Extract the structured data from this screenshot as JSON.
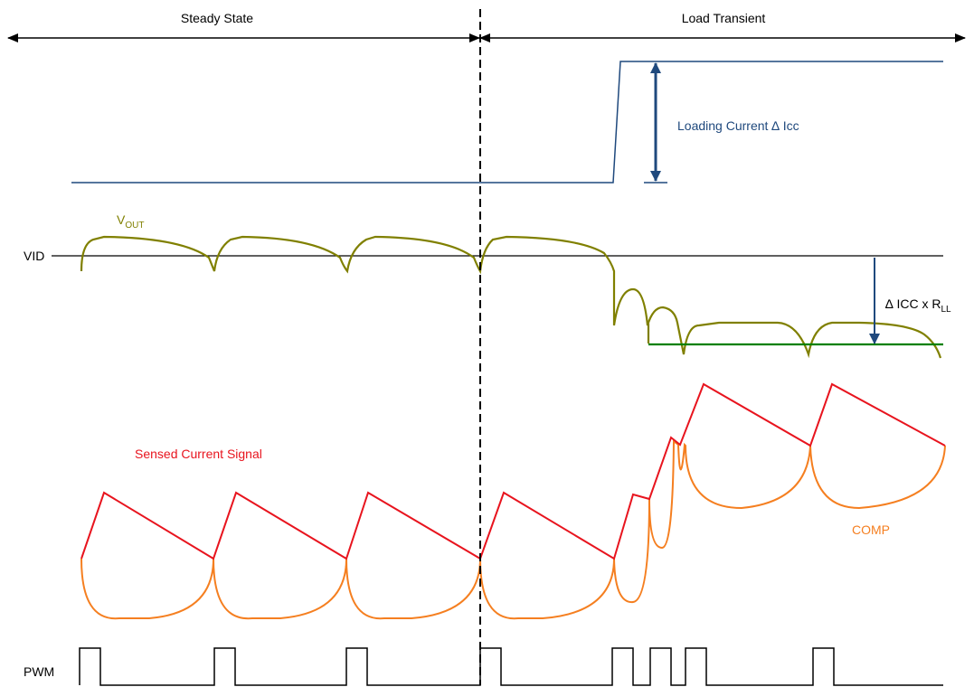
{
  "phases": {
    "steady": "Steady State",
    "transient": "Load Transient"
  },
  "labels": {
    "loading_current": "Loading Current ∆ Icc",
    "vout_main": "V",
    "vout_sub": "OUT",
    "vid": "VID",
    "droop_main": "∆ ICC x R",
    "droop_sub": "LL",
    "sensed": "Sensed Current Signal",
    "comp": "COMP",
    "pwm": "PWM"
  },
  "colors": {
    "load_current": "#1f497d",
    "vout": "#808000",
    "vid_line": "#000000",
    "droop_level": "#008000",
    "sensed": "#e8141e",
    "comp": "#f57f20",
    "pwm": "#000000",
    "axis": "#000000"
  }
}
